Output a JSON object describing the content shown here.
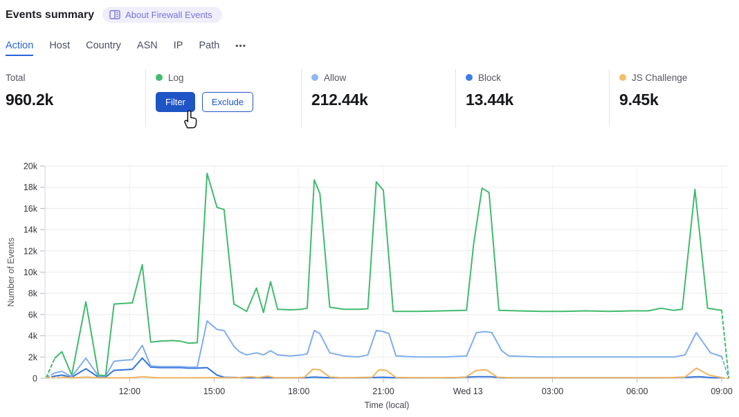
{
  "header": {
    "title": "Events summary",
    "about_label": "About Firewall Events"
  },
  "tabs": {
    "items": [
      {
        "label": "Action",
        "active": true
      },
      {
        "label": "Host",
        "active": false
      },
      {
        "label": "Country",
        "active": false
      },
      {
        "label": "ASN",
        "active": false
      },
      {
        "label": "IP",
        "active": false
      },
      {
        "label": "Path",
        "active": false
      }
    ],
    "more_label": "•••",
    "active_color": "#2764d9"
  },
  "stats": {
    "total": {
      "label": "Total",
      "value": "960.2k"
    },
    "log": {
      "label": "Log",
      "color": "#41bd6e",
      "filter_label": "Filter",
      "exclude_label": "Exclude"
    },
    "allow": {
      "label": "Allow",
      "value": "212.44k",
      "color": "#8db9f2"
    },
    "block": {
      "label": "Block",
      "value": "13.44k",
      "color": "#3c7ee8"
    },
    "js_challenge": {
      "label": "JS Challenge",
      "value": "9.45k",
      "color": "#f3bd69"
    }
  },
  "cursor": {
    "name": "hand-pointer"
  },
  "chart_data": {
    "type": "line",
    "xlabel": "Time (local)",
    "ylabel": "Number of Events",
    "grid": true,
    "legend_position": "none",
    "x_unit": "hours of day (24 = Wed 13 00:00 local)",
    "y_unit": "thousands of events",
    "xlim": [
      9,
      33.3
    ],
    "ylim_k": [
      0,
      20
    ],
    "x_ticks": [
      {
        "t": 12,
        "label": "12:00"
      },
      {
        "t": 15,
        "label": "15:00"
      },
      {
        "t": 18,
        "label": "18:00"
      },
      {
        "t": 21,
        "label": "21:00"
      },
      {
        "t": 24,
        "label": "Wed 13"
      },
      {
        "t": 27,
        "label": "03:00"
      },
      {
        "t": 30,
        "label": "06:00"
      },
      {
        "t": 33,
        "label": "09:00"
      }
    ],
    "y_ticks": [
      {
        "v": 0,
        "label": "0"
      },
      {
        "v": 2,
        "label": "2k"
      },
      {
        "v": 4,
        "label": "4k"
      },
      {
        "v": 6,
        "label": "6k"
      },
      {
        "v": 8,
        "label": "8k"
      },
      {
        "v": 10,
        "label": "10k"
      },
      {
        "v": 12,
        "label": "12k"
      },
      {
        "v": 14,
        "label": "14k"
      },
      {
        "v": 16,
        "label": "16k"
      },
      {
        "v": 18,
        "label": "18k"
      },
      {
        "v": 20,
        "label": "20k"
      }
    ],
    "series": [
      {
        "name": "Log",
        "color": "#3fba6c",
        "z": 3,
        "dashed_start": true,
        "dashed_end": true,
        "points": [
          [
            9.05,
            0.1
          ],
          [
            9.35,
            1.9
          ],
          [
            9.6,
            2.5
          ],
          [
            9.95,
            0.3
          ],
          [
            10.45,
            7.2
          ],
          [
            10.9,
            0.3
          ],
          [
            11.15,
            0.25
          ],
          [
            11.45,
            7.0
          ],
          [
            11.8,
            7.05
          ],
          [
            12.1,
            7.1
          ],
          [
            12.45,
            10.7
          ],
          [
            12.75,
            3.4
          ],
          [
            13.1,
            3.5
          ],
          [
            13.5,
            3.55
          ],
          [
            13.8,
            3.5
          ],
          [
            14.1,
            3.3
          ],
          [
            14.4,
            3.35
          ],
          [
            14.75,
            19.3
          ],
          [
            15.1,
            16.1
          ],
          [
            15.35,
            15.9
          ],
          [
            15.7,
            7.0
          ],
          [
            15.9,
            6.7
          ],
          [
            16.15,
            6.3
          ],
          [
            16.5,
            8.5
          ],
          [
            16.75,
            6.2
          ],
          [
            17.0,
            9.1
          ],
          [
            17.25,
            6.5
          ],
          [
            17.7,
            6.45
          ],
          [
            18.1,
            6.5
          ],
          [
            18.3,
            6.6
          ],
          [
            18.55,
            18.7
          ],
          [
            18.75,
            17.4
          ],
          [
            19.1,
            6.7
          ],
          [
            19.6,
            6.5
          ],
          [
            20.1,
            6.5
          ],
          [
            20.45,
            6.55
          ],
          [
            20.75,
            18.5
          ],
          [
            21.0,
            17.7
          ],
          [
            21.35,
            6.3
          ],
          [
            22.2,
            6.3
          ],
          [
            23.1,
            6.35
          ],
          [
            23.95,
            6.4
          ],
          [
            24.2,
            12.6
          ],
          [
            24.5,
            17.9
          ],
          [
            24.75,
            17.5
          ],
          [
            25.1,
            6.4
          ],
          [
            25.8,
            6.35
          ],
          [
            26.6,
            6.3
          ],
          [
            27.4,
            6.3
          ],
          [
            28.2,
            6.35
          ],
          [
            29.0,
            6.3
          ],
          [
            29.8,
            6.35
          ],
          [
            30.4,
            6.35
          ],
          [
            30.85,
            6.6
          ],
          [
            31.3,
            6.4
          ],
          [
            31.6,
            6.5
          ],
          [
            32.05,
            17.8
          ],
          [
            32.5,
            6.6
          ],
          [
            33.0,
            6.4
          ],
          [
            33.25,
            0
          ]
        ]
      },
      {
        "name": "Allow",
        "color": "#7fadee",
        "z": 2,
        "dashed_start": true,
        "dashed_end": true,
        "points": [
          [
            9.05,
            0.1
          ],
          [
            9.35,
            0.5
          ],
          [
            9.6,
            0.65
          ],
          [
            9.95,
            0.15
          ],
          [
            10.45,
            1.9
          ],
          [
            10.9,
            0.2
          ],
          [
            11.15,
            0.2
          ],
          [
            11.45,
            1.6
          ],
          [
            11.8,
            1.7
          ],
          [
            12.1,
            1.75
          ],
          [
            12.45,
            3.1
          ],
          [
            12.75,
            1.15
          ],
          [
            13.1,
            1.1
          ],
          [
            13.5,
            1.1
          ],
          [
            13.8,
            1.1
          ],
          [
            14.1,
            1.05
          ],
          [
            14.4,
            1.05
          ],
          [
            14.75,
            5.4
          ],
          [
            15.1,
            4.6
          ],
          [
            15.35,
            4.5
          ],
          [
            15.7,
            3.0
          ],
          [
            15.9,
            2.5
          ],
          [
            16.15,
            2.2
          ],
          [
            16.5,
            2.4
          ],
          [
            16.75,
            2.2
          ],
          [
            17.0,
            2.6
          ],
          [
            17.25,
            2.2
          ],
          [
            17.7,
            2.1
          ],
          [
            18.1,
            2.2
          ],
          [
            18.3,
            2.3
          ],
          [
            18.55,
            4.5
          ],
          [
            18.75,
            4.2
          ],
          [
            19.1,
            2.4
          ],
          [
            19.6,
            2.1
          ],
          [
            20.1,
            2.0
          ],
          [
            20.45,
            2.2
          ],
          [
            20.75,
            4.5
          ],
          [
            21.0,
            4.4
          ],
          [
            21.2,
            4.2
          ],
          [
            21.45,
            2.1
          ],
          [
            22.2,
            2.0
          ],
          [
            23.1,
            2.0
          ],
          [
            23.95,
            2.1
          ],
          [
            24.3,
            4.3
          ],
          [
            24.6,
            4.4
          ],
          [
            24.85,
            4.3
          ],
          [
            25.2,
            2.6
          ],
          [
            25.45,
            2.1
          ],
          [
            26.6,
            2.0
          ],
          [
            27.4,
            2.0
          ],
          [
            28.2,
            2.0
          ],
          [
            29.0,
            2.0
          ],
          [
            29.8,
            2.0
          ],
          [
            30.6,
            2.0
          ],
          [
            31.3,
            2.0
          ],
          [
            31.7,
            2.2
          ],
          [
            32.1,
            4.3
          ],
          [
            32.6,
            2.4
          ],
          [
            33.0,
            2.05
          ],
          [
            33.25,
            0
          ]
        ]
      },
      {
        "name": "Block",
        "color": "#3273dc",
        "z": 1,
        "dashed_start": true,
        "dashed_end": true,
        "points": [
          [
            9.05,
            0.05
          ],
          [
            9.35,
            0.2
          ],
          [
            9.6,
            0.3
          ],
          [
            9.95,
            0.1
          ],
          [
            10.45,
            0.9
          ],
          [
            10.9,
            0.1
          ],
          [
            11.15,
            0.1
          ],
          [
            11.45,
            0.75
          ],
          [
            11.8,
            0.8
          ],
          [
            12.1,
            0.85
          ],
          [
            12.45,
            1.9
          ],
          [
            12.75,
            1.05
          ],
          [
            13.1,
            1.0
          ],
          [
            13.5,
            1.0
          ],
          [
            13.8,
            1.0
          ],
          [
            14.1,
            0.95
          ],
          [
            14.4,
            0.95
          ],
          [
            14.75,
            1.0
          ],
          [
            15.1,
            0.3
          ],
          [
            15.35,
            0.1
          ],
          [
            16.2,
            0.05
          ],
          [
            17.2,
            0.05
          ],
          [
            18.2,
            0.06
          ],
          [
            18.55,
            0.12
          ],
          [
            19.1,
            0.05
          ],
          [
            20.2,
            0.05
          ],
          [
            21.0,
            0.1
          ],
          [
            21.5,
            0.05
          ],
          [
            22.5,
            0.05
          ],
          [
            23.5,
            0.05
          ],
          [
            24.3,
            0.15
          ],
          [
            24.8,
            0.15
          ],
          [
            25.2,
            0.05
          ],
          [
            26.5,
            0.05
          ],
          [
            28.0,
            0.05
          ],
          [
            29.5,
            0.05
          ],
          [
            31.0,
            0.05
          ],
          [
            31.8,
            0.1
          ],
          [
            32.2,
            0.15
          ],
          [
            32.7,
            0.05
          ],
          [
            33.0,
            0.05
          ],
          [
            33.25,
            0
          ]
        ]
      },
      {
        "name": "JS Challenge",
        "color": "#f0b460",
        "z": 4,
        "dashed_start": true,
        "dashed_end": true,
        "points": [
          [
            9.05,
            0.05
          ],
          [
            9.6,
            0.1
          ],
          [
            10.0,
            0.05
          ],
          [
            10.45,
            0.12
          ],
          [
            11.0,
            0.04
          ],
          [
            11.6,
            0.04
          ],
          [
            12.1,
            0.06
          ],
          [
            12.45,
            0.15
          ],
          [
            13.0,
            0.05
          ],
          [
            14.0,
            0.05
          ],
          [
            15.0,
            0.06
          ],
          [
            15.8,
            0.05
          ],
          [
            16.3,
            0.15
          ],
          [
            16.55,
            0.06
          ],
          [
            16.9,
            0.2
          ],
          [
            17.15,
            0.06
          ],
          [
            17.8,
            0.05
          ],
          [
            18.2,
            0.1
          ],
          [
            18.5,
            0.85
          ],
          [
            18.75,
            0.8
          ],
          [
            19.1,
            0.12
          ],
          [
            19.6,
            0.05
          ],
          [
            20.6,
            0.1
          ],
          [
            20.85,
            0.8
          ],
          [
            21.1,
            0.75
          ],
          [
            21.45,
            0.08
          ],
          [
            22.5,
            0.05
          ],
          [
            23.9,
            0.08
          ],
          [
            24.3,
            0.75
          ],
          [
            24.65,
            0.8
          ],
          [
            25.05,
            0.1
          ],
          [
            25.6,
            0.05
          ],
          [
            27.0,
            0.05
          ],
          [
            28.5,
            0.05
          ],
          [
            30.0,
            0.05
          ],
          [
            31.0,
            0.05
          ],
          [
            31.7,
            0.12
          ],
          [
            32.1,
            0.95
          ],
          [
            32.55,
            0.3
          ],
          [
            33.0,
            0.06
          ],
          [
            33.25,
            0
          ]
        ]
      }
    ]
  }
}
